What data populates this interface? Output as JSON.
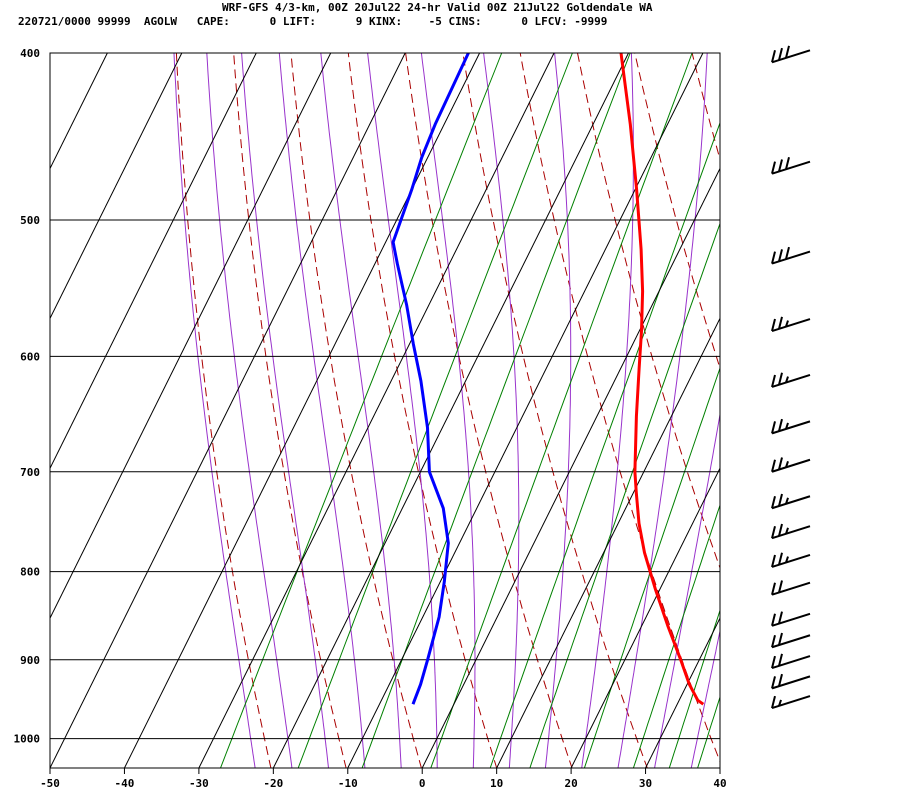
{
  "header": {
    "title": "WRF-GFS 4/3-km, 00Z 20Jul22 24-hr Valid 00Z 21Jul22 Goldendale WA",
    "stats": "220721/0000 99999  AGOLW   CAPE:      0 LIFT:      9 KINX:    -5 CINS:      0 LFCV: -9999"
  },
  "colors": {
    "temperature": "#ff0000",
    "dewpoint": "#0000ff",
    "dry_adiabat": "#aa0000",
    "moist_adiabat": "#9933cc",
    "mixing_ratio": "#008000",
    "grid": "#000000"
  },
  "chart_data": {
    "type": "line",
    "subtype": "skew-T log-p sounding",
    "xlim": [
      -50,
      40
    ],
    "ylim": [
      1040,
      400
    ],
    "yscale": "log",
    "x_ticks": [
      -50,
      -40,
      -30,
      -20,
      -10,
      0,
      10,
      20,
      30,
      40
    ],
    "x_tick_labels": [
      "-50",
      "-40",
      "-30",
      "-20",
      "-10",
      "0",
      "10",
      "20",
      "30",
      "40"
    ],
    "y_ticks": [
      400,
      500,
      600,
      700,
      800,
      900,
      1000
    ],
    "y_tick_labels": [
      "400",
      "500",
      "600",
      "700",
      "800",
      "900",
      "1000"
    ],
    "grid": true,
    "legend": "none",
    "series": [
      {
        "role": "temperature",
        "color": "#ff0000",
        "points": [
          {
            "p": 955,
            "t": 33.5
          },
          {
            "p": 950,
            "t": 32.5
          },
          {
            "p": 930,
            "t": 30.3
          },
          {
            "p": 900,
            "t": 27.5
          },
          {
            "p": 860,
            "t": 23.5
          },
          {
            "p": 820,
            "t": 19.5
          },
          {
            "p": 780,
            "t": 15.5
          },
          {
            "p": 750,
            "t": 12.8
          },
          {
            "p": 720,
            "t": 10.4
          },
          {
            "p": 700,
            "t": 8.8
          },
          {
            "p": 650,
            "t": 5.3
          },
          {
            "p": 610,
            "t": 2.5
          },
          {
            "p": 580,
            "t": 0.3
          },
          {
            "p": 550,
            "t": -2.2
          },
          {
            "p": 520,
            "t": -5.2
          },
          {
            "p": 480,
            "t": -9.8
          },
          {
            "p": 440,
            "t": -15.0
          },
          {
            "p": 400,
            "t": -21.0
          }
        ]
      },
      {
        "role": "dewpoint",
        "color": "#0000ff",
        "points": [
          {
            "p": 955,
            "t": -5.5
          },
          {
            "p": 930,
            "t": -5.8
          },
          {
            "p": 900,
            "t": -6.5
          },
          {
            "p": 850,
            "t": -7.8
          },
          {
            "p": 810,
            "t": -9.5
          },
          {
            "p": 770,
            "t": -11.5
          },
          {
            "p": 735,
            "t": -14.5
          },
          {
            "p": 700,
            "t": -18.8
          },
          {
            "p": 660,
            "t": -22.0
          },
          {
            "p": 620,
            "t": -26.0
          },
          {
            "p": 590,
            "t": -29.5
          },
          {
            "p": 560,
            "t": -33.0
          },
          {
            "p": 530,
            "t": -37.0
          },
          {
            "p": 515,
            "t": -39.0
          },
          {
            "p": 480,
            "t": -40.0
          },
          {
            "p": 460,
            "t": -40.8
          },
          {
            "p": 440,
            "t": -41.2
          },
          {
            "p": 400,
            "t": -41.5
          }
        ]
      }
    ],
    "wind_barbs": [
      {
        "p": 405,
        "speed_kt": 30
      },
      {
        "p": 470,
        "speed_kt": 30
      },
      {
        "p": 530,
        "speed_kt": 30
      },
      {
        "p": 580,
        "speed_kt": 25
      },
      {
        "p": 625,
        "speed_kt": 25
      },
      {
        "p": 665,
        "speed_kt": 25
      },
      {
        "p": 700,
        "speed_kt": 25
      },
      {
        "p": 735,
        "speed_kt": 25
      },
      {
        "p": 765,
        "speed_kt": 25
      },
      {
        "p": 795,
        "speed_kt": 25
      },
      {
        "p": 825,
        "speed_kt": 20
      },
      {
        "p": 860,
        "speed_kt": 20
      },
      {
        "p": 885,
        "speed_kt": 20
      },
      {
        "p": 910,
        "speed_kt": 20
      },
      {
        "p": 935,
        "speed_kt": 20
      },
      {
        "p": 960,
        "speed_kt": 15
      }
    ]
  }
}
